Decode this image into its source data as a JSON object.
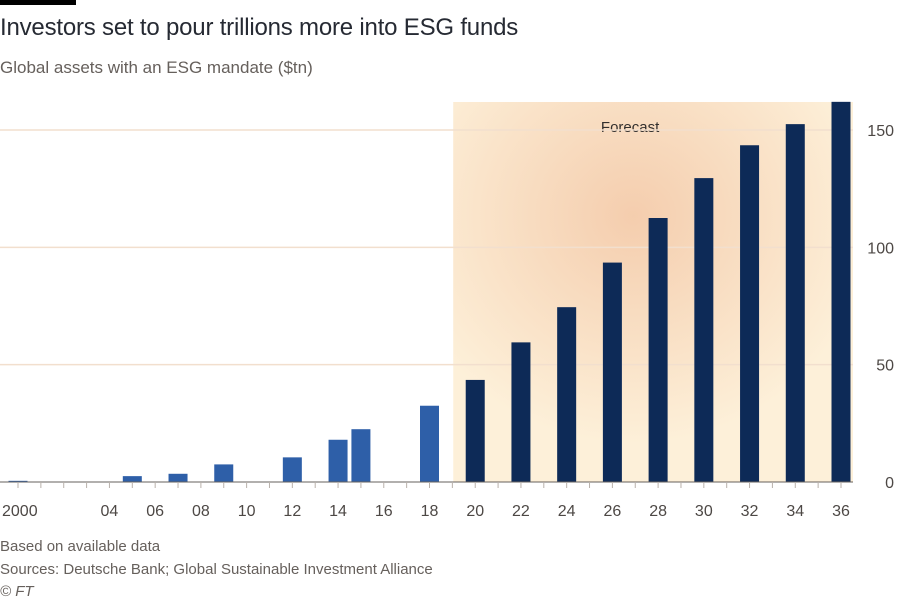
{
  "title": "Investors set to pour trillions more into ESG funds",
  "subtitle": "Global assets with an ESG mandate ($tn)",
  "notes": [
    "Based on available data",
    "Sources: Deutsche Bank; Global Sustainable Investment Alliance",
    "© FT"
  ],
  "colors": {
    "historical_bar": "#2e5fa8",
    "forecast_bar": "#0d2a57",
    "forecast_band": "#fdf0d9",
    "grid": "#f2dfce",
    "axis": "#66605c"
  },
  "chart_data": {
    "type": "bar",
    "title": "Investors set to pour trillions more into ESG funds",
    "subtitle": "Global assets with an ESG mandate ($tn)",
    "xlabel": "",
    "ylabel": "",
    "ylim": [
      0,
      160
    ],
    "y_ticks": [
      0,
      50,
      100,
      150
    ],
    "y_axis_side": "right",
    "x_range": [
      2000,
      2036
    ],
    "x_tick_labels": [
      "2000",
      "04",
      "06",
      "08",
      "10",
      "12",
      "14",
      "16",
      "18",
      "20",
      "22",
      "24",
      "26",
      "28",
      "30",
      "32",
      "34",
      "36"
    ],
    "x_tick_years": [
      2000,
      2004,
      2006,
      2008,
      2010,
      2012,
      2014,
      2016,
      2018,
      2020,
      2022,
      2024,
      2026,
      2028,
      2030,
      2032,
      2034,
      2036
    ],
    "grid": true,
    "forecast_annotation": "Forecast",
    "forecast_start_year": 2020,
    "series": [
      {
        "type": "historical",
        "x": [
          2000,
          2005,
          2007,
          2009,
          2012,
          2014,
          2015,
          2018
        ],
        "values": [
          0.5,
          2.5,
          3.5,
          7.5,
          10.5,
          18,
          22.5,
          32.5
        ]
      },
      {
        "type": "forecast",
        "x": [
          2020,
          2022,
          2024,
          2026,
          2028,
          2030,
          2032,
          2034,
          2036
        ],
        "values": [
          43.5,
          59.5,
          74.5,
          93.5,
          112.5,
          129.5,
          143.5,
          152.5,
          162
        ]
      }
    ]
  }
}
